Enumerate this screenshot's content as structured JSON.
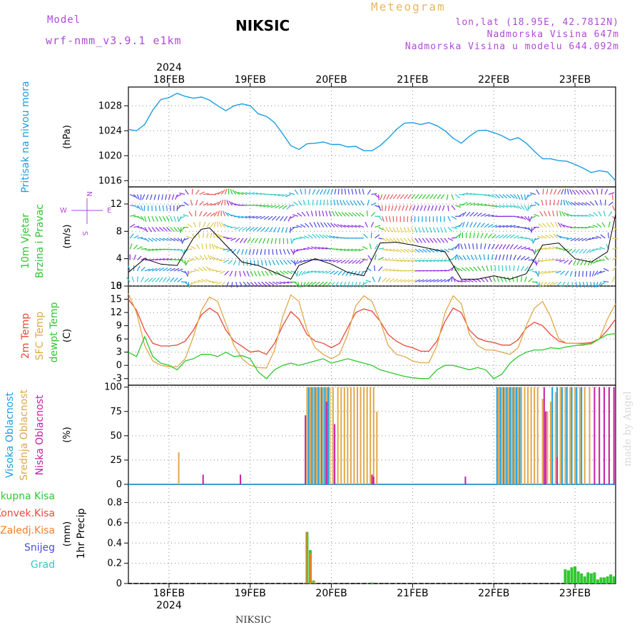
{
  "header": {
    "model_label": "Model",
    "model_name": "wrf-nmm_v3.9.1 e1km",
    "station": "NIKSIC",
    "chart_type": "Meteogram",
    "lonlat": "lon,lat (18.95E, 42.7812N)",
    "altitude": "Nadmorska Visina 647m",
    "model_altitude": "Nadmorska Visina u modelu 644.092m"
  },
  "footer": {
    "station": "NIKSIC",
    "credit": "made by Angel"
  },
  "colors": {
    "pressure": "#1a9ee0",
    "t2m": "#e84a3a",
    "tsfc": "#e0a84a",
    "dew": "#2ec82e",
    "high_cloud": "#1a9ee0",
    "mid_cloud": "#e0a84a",
    "low_cloud": "#c81ea0",
    "total_precip": "#2ec82e",
    "conv_precip": "#e84a3a",
    "frozen_precip": "#f08030",
    "snow": "#4a4ae0",
    "hail": "#30c8c8"
  },
  "chart_data": [
    {
      "type": "line",
      "panel": "pressure",
      "ylabel": "Pritisak na nivou mora",
      "unit": "(hPa)",
      "yticks": [
        1016,
        1020,
        1024,
        1028
      ],
      "ylim": [
        1015,
        1031
      ],
      "x_days": [
        17.5,
        17.6,
        17.7,
        17.8,
        17.9,
        18.0,
        18.1,
        18.2,
        18.3,
        18.4,
        18.5,
        18.6,
        18.7,
        18.8,
        18.9,
        19.0,
        19.1,
        19.2,
        19.3,
        19.4,
        19.5,
        19.6,
        19.7,
        19.8,
        19.9,
        20.0,
        20.1,
        20.2,
        20.3,
        20.4,
        20.5,
        20.6,
        20.7,
        20.8,
        20.9,
        21.0,
        21.1,
        21.2,
        21.3,
        21.4,
        21.5,
        21.6,
        21.7,
        21.8,
        21.9,
        22.0,
        22.1,
        22.2,
        22.3,
        22.4,
        22.5,
        22.6,
        22.7,
        22.8,
        22.9,
        23.0,
        23.1,
        23.2,
        23.3,
        23.4,
        23.5
      ],
      "values": [
        1024.2,
        1024.0,
        1025.0,
        1027.3,
        1029.0,
        1029.3,
        1030.0,
        1029.5,
        1029.2,
        1029.4,
        1028.9,
        1028.0,
        1027.2,
        1028.0,
        1028.3,
        1028.0,
        1026.7,
        1026.3,
        1025.3,
        1023.5,
        1021.6,
        1021.0,
        1021.9,
        1022.0,
        1022.2,
        1021.8,
        1021.8,
        1021.4,
        1021.5,
        1020.8,
        1020.8,
        1021.6,
        1022.8,
        1024.2,
        1025.2,
        1025.3,
        1025.0,
        1025.3,
        1024.8,
        1024.0,
        1022.8,
        1022.0,
        1023.1,
        1024.0,
        1024.1,
        1023.7,
        1023.2,
        1022.5,
        1022.9,
        1022.0,
        1020.7,
        1019.5,
        1019.5,
        1019.2,
        1019.1,
        1018.6,
        1018.0,
        1017.3,
        1017.6,
        1017.4,
        1016.0
      ]
    },
    {
      "type": "line",
      "panel": "wind",
      "ylabel": "10m Vjetar Brzina i Pravac",
      "unit": "(m/s)",
      "yticks": [
        0,
        4,
        8,
        12
      ],
      "ylim": [
        0,
        14.5
      ],
      "compass": [
        "N",
        "E",
        "W",
        "S"
      ],
      "x_days": [
        17.5,
        17.7,
        17.9,
        18.1,
        18.3,
        18.4,
        18.5,
        18.7,
        18.9,
        19.1,
        19.3,
        19.5,
        19.6,
        19.8,
        20.0,
        20.2,
        20.4,
        20.6,
        20.8,
        21.0,
        21.2,
        21.4,
        21.6,
        21.8,
        22.0,
        22.2,
        22.4,
        22.6,
        22.8,
        23.0,
        23.2,
        23.4,
        23.5
      ],
      "values": [
        2.0,
        4.0,
        3.2,
        3.0,
        7.0,
        8.3,
        8.5,
        6.0,
        3.5,
        3.0,
        2.0,
        1.0,
        3.0,
        4.0,
        3.2,
        2.0,
        1.5,
        6.3,
        6.4,
        6.0,
        5.5,
        5.0,
        1.0,
        1.0,
        1.5,
        1.0,
        1.8,
        6.0,
        6.3,
        4.0,
        3.5,
        5.0,
        10.5
      ]
    },
    {
      "type": "line",
      "panel": "temperature",
      "ylabel": [
        "2m Temp",
        "SFC Temp",
        "dewpt Temp"
      ],
      "unit": "(C)",
      "yticks": [
        -3,
        0,
        3,
        6,
        9,
        12,
        15,
        18
      ],
      "ylim": [
        -4.5,
        18
      ],
      "x_days": [
        17.5,
        17.6,
        17.7,
        17.8,
        17.9,
        18.0,
        18.1,
        18.2,
        18.3,
        18.4,
        18.5,
        18.6,
        18.7,
        18.8,
        18.9,
        19.0,
        19.1,
        19.2,
        19.3,
        19.4,
        19.5,
        19.6,
        19.7,
        19.8,
        19.9,
        20.0,
        20.1,
        20.2,
        20.3,
        20.4,
        20.5,
        20.6,
        20.7,
        20.8,
        20.9,
        21.0,
        21.1,
        21.2,
        21.3,
        21.4,
        21.5,
        21.6,
        21.7,
        21.8,
        21.9,
        22.0,
        22.1,
        22.2,
        22.3,
        22.4,
        22.5,
        22.6,
        22.7,
        22.8,
        22.9,
        23.0,
        23.1,
        23.2,
        23.3,
        23.4,
        23.5
      ],
      "series": [
        {
          "name": "2m Temp",
          "values": [
            15.0,
            12.5,
            8.0,
            5.0,
            4.4,
            4.4,
            4.6,
            5.5,
            8.0,
            11.5,
            13.0,
            11.8,
            8.0,
            5.5,
            4.3,
            3.0,
            3.3,
            2.5,
            5.0,
            9.0,
            12.2,
            10.5,
            7.0,
            5.5,
            5.0,
            4.0,
            5.0,
            8.5,
            12.0,
            12.8,
            12.3,
            10.0,
            7.0,
            5.5,
            4.5,
            4.0,
            3.2,
            3.2,
            5.5,
            10.0,
            13.0,
            12.0,
            8.0,
            6.2,
            5.5,
            5.2,
            4.6,
            4.6,
            5.8,
            8.5,
            9.8,
            9.0,
            7.0,
            5.5,
            5.0,
            5.0,
            5.0,
            5.2,
            6.0,
            8.0,
            10.5
          ]
        },
        {
          "name": "SFC Temp",
          "values": [
            16.3,
            12.0,
            4.5,
            1.0,
            0.0,
            -0.3,
            -0.3,
            1.5,
            6.5,
            12.5,
            15.5,
            14.5,
            9.5,
            4.5,
            1.5,
            0.0,
            -0.5,
            -0.6,
            3.5,
            11.0,
            16.0,
            14.5,
            8.0,
            4.0,
            2.5,
            1.5,
            2.5,
            7.0,
            13.5,
            15.8,
            14.5,
            10.0,
            4.5,
            2.5,
            2.0,
            1.0,
            0.6,
            0.6,
            4.5,
            12.0,
            15.8,
            14.0,
            7.0,
            4.5,
            3.5,
            3.5,
            3.0,
            2.5,
            4.0,
            9.0,
            13.0,
            14.5,
            11.0,
            6.0,
            5.0,
            5.0,
            4.8,
            4.8,
            6.0,
            10.5,
            14.0
          ]
        },
        {
          "name": "dewpt Temp",
          "values": [
            3.0,
            2.0,
            6.5,
            2.0,
            0.5,
            0.0,
            -1.0,
            1.0,
            1.5,
            2.5,
            2.5,
            2.0,
            3.0,
            2.0,
            2.2,
            1.5,
            -1.5,
            -3.0,
            -1.0,
            0.0,
            0.5,
            0.0,
            0.5,
            1.0,
            1.5,
            0.5,
            1.0,
            1.5,
            1.0,
            0.5,
            0.0,
            -1.0,
            -1.5,
            -2.0,
            -2.5,
            -2.8,
            -3.0,
            -3.0,
            -1.0,
            0.0,
            0.0,
            -0.5,
            -1.0,
            -0.5,
            -1.0,
            -3.0,
            -2.0,
            0.5,
            2.0,
            3.0,
            3.5,
            3.5,
            4.0,
            3.8,
            4.2,
            4.5,
            4.6,
            5.0,
            6.0,
            7.0,
            7.2
          ]
        }
      ]
    },
    {
      "type": "bar",
      "panel": "cloud",
      "ylabel": [
        "Visoka Oblacnost",
        "Srednja Oblacnost",
        "Niska Oblacnost"
      ],
      "unit": "(%)",
      "yticks": [
        0,
        25,
        50,
        75,
        100
      ],
      "ylim": [
        0,
        102
      ],
      "series": [
        {
          "name": "Visoka Oblacnost",
          "x_days": [
            19.72,
            19.76,
            19.8,
            19.84,
            19.88,
            19.92,
            19.96,
            22.04,
            22.08,
            22.12,
            22.16,
            22.2,
            22.24,
            22.28,
            22.32,
            22.72,
            22.78,
            22.84,
            22.9,
            22.96,
            23.02,
            23.08
          ],
          "values": [
            100,
            100,
            100,
            100,
            100,
            100,
            100,
            100,
            100,
            100,
            100,
            100,
            100,
            100,
            100,
            100,
            100,
            100,
            100,
            100,
            100,
            100
          ]
        },
        {
          "name": "Srednja Oblacnost",
          "x_days": [
            18.12,
            19.7,
            19.74,
            19.78,
            19.82,
            19.86,
            19.9,
            19.94,
            19.98,
            20.02,
            20.08,
            20.12,
            20.16,
            20.2,
            20.24,
            20.28,
            20.32,
            20.36,
            20.4,
            20.44,
            20.48,
            20.52,
            20.56,
            22.06,
            22.1,
            22.14,
            22.18,
            22.22,
            22.26,
            22.3,
            22.34,
            22.38,
            22.42,
            22.46,
            22.5,
            22.54,
            22.6,
            22.66,
            22.7,
            22.76,
            22.82,
            22.88,
            22.94,
            23.0,
            23.06,
            23.12,
            23.18
          ],
          "values": [
            33,
            100,
            100,
            100,
            100,
            100,
            100,
            100,
            100,
            100,
            100,
            100,
            100,
            100,
            100,
            100,
            100,
            100,
            100,
            100,
            100,
            100,
            75,
            100,
            100,
            100,
            100,
            100,
            100,
            100,
            100,
            100,
            100,
            100,
            100,
            100,
            88,
            75,
            85,
            95,
            100,
            100,
            100,
            100,
            100,
            100,
            100
          ]
        },
        {
          "name": "Niska Oblacnost",
          "x_days": [
            18.42,
            18.88,
            19.68,
            19.94,
            20.04,
            20.5,
            20.52,
            21.65,
            22.62,
            22.64,
            22.78,
            23.24,
            23.3,
            23.36,
            23.42,
            23.48
          ],
          "values": [
            10,
            10,
            71,
            85,
            62,
            10,
            8,
            8,
            100,
            75,
            28,
            100,
            100,
            100,
            100,
            100
          ]
        }
      ]
    },
    {
      "type": "bar",
      "panel": "precip",
      "ylabel": "1hr Precip",
      "unit": "(mm)",
      "legend": [
        "Ukupna Kisa",
        "Konvek.Kisa",
        "Zaledj.Kisa",
        "Snijeg",
        "Grad"
      ],
      "yticks": [
        0,
        0.2,
        0.4,
        0.6,
        0.8
      ],
      "ylim": [
        0,
        0.98
      ],
      "series": [
        {
          "name": "Ukupna Kisa",
          "x_days": [
            19.7,
            19.74,
            19.78,
            20.5,
            22.88,
            22.92,
            22.96,
            23.0,
            23.04,
            23.08,
            23.12,
            23.16,
            23.2,
            23.24,
            23.28,
            23.32,
            23.36,
            23.4,
            23.44,
            23.48
          ],
          "values": [
            0.51,
            0.33,
            0.03,
            0.01,
            0.14,
            0.13,
            0.16,
            0.17,
            0.12,
            0.1,
            0.07,
            0.11,
            0.1,
            0.11,
            0.04,
            0.06,
            0.06,
            0.07,
            0.09,
            0.07
          ]
        },
        {
          "name": "Zaledj.Kisa",
          "x_days": [
            19.7,
            19.74,
            19.78
          ],
          "values": [
            0.51,
            0.3,
            0.03
          ]
        }
      ]
    }
  ],
  "xaxis": {
    "day_labels": [
      "18FEB",
      "19FEB",
      "20FEB",
      "21FEB",
      "22FEB",
      "23FEB"
    ],
    "day_values": [
      18,
      19,
      20,
      21,
      22,
      23
    ],
    "year": "2024",
    "range": [
      17.5,
      23.5
    ]
  }
}
